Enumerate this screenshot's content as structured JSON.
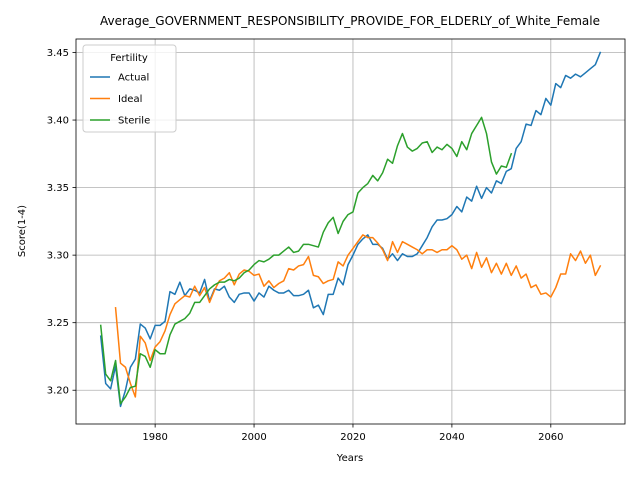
{
  "chart_data": {
    "type": "line",
    "title": "Average_GOVERNMENT_RESPONSIBILITY_PROVIDE_FOR_ELDERLY_of_White_Female",
    "xlabel": "Years",
    "ylabel": "Score(1-4)",
    "xlim": [
      1964,
      2075
    ],
    "ylim": [
      3.175,
      3.46
    ],
    "xticks": [
      1980,
      2000,
      2020,
      2040,
      2060
    ],
    "yticks": [
      3.2,
      3.25,
      3.3,
      3.35,
      3.4,
      3.45
    ],
    "xtick_labels": [
      "1980",
      "2000",
      "2020",
      "2040",
      "2060"
    ],
    "ytick_labels": [
      "3.20",
      "3.25",
      "3.30",
      "3.35",
      "3.40",
      "3.45"
    ],
    "grid": true,
    "legend": {
      "title": "Fertility",
      "position": "top-left"
    },
    "series": [
      {
        "name": "Actual",
        "color": "#1f77b4",
        "x": [
          1969,
          1970,
          1971,
          1972,
          1973,
          1974,
          1975,
          1976,
          1977,
          1978,
          1979,
          1980,
          1981,
          1982,
          1983,
          1984,
          1985,
          1986,
          1987,
          1988,
          1989,
          1990,
          1991,
          1992,
          1993,
          1994,
          1995,
          1996,
          1997,
          1998,
          1999,
          2000,
          2001,
          2002,
          2003,
          2004,
          2005,
          2006,
          2007,
          2008,
          2009,
          2010,
          2011,
          2012,
          2013,
          2014,
          2015,
          2016,
          2017,
          2018,
          2019,
          2020,
          2021,
          2022,
          2023,
          2024,
          2025,
          2026,
          2027,
          2028,
          2029,
          2030,
          2031,
          2032,
          2033,
          2034,
          2035,
          2036,
          2037,
          2038,
          2039,
          2040,
          2041,
          2042,
          2043,
          2044,
          2045,
          2046,
          2047,
          2048,
          2049,
          2050,
          2051,
          2052,
          2053,
          2054,
          2055,
          2056,
          2057,
          2058,
          2059,
          2060,
          2061,
          2062,
          2063,
          2064,
          2065,
          2066,
          2067,
          2068,
          2069,
          2070
        ],
        "values": [
          3.24,
          3.205,
          3.201,
          3.218,
          3.188,
          3.2,
          3.217,
          3.223,
          3.249,
          3.246,
          3.238,
          3.248,
          3.248,
          3.251,
          3.273,
          3.271,
          3.28,
          3.27,
          3.275,
          3.274,
          3.272,
          3.282,
          3.266,
          3.275,
          3.274,
          3.277,
          3.269,
          3.265,
          3.271,
          3.272,
          3.272,
          3.266,
          3.272,
          3.269,
          3.277,
          3.274,
          3.272,
          3.272,
          3.274,
          3.27,
          3.27,
          3.271,
          3.274,
          3.261,
          3.263,
          3.256,
          3.271,
          3.271,
          3.283,
          3.278,
          3.293,
          3.3,
          3.308,
          3.312,
          3.315,
          3.308,
          3.308,
          3.305,
          3.297,
          3.301,
          3.296,
          3.301,
          3.299,
          3.299,
          3.301,
          3.307,
          3.313,
          3.321,
          3.326,
          3.326,
          3.327,
          3.33,
          3.336,
          3.332,
          3.343,
          3.34,
          3.351,
          3.342,
          3.35,
          3.346,
          3.355,
          3.353,
          3.362,
          3.364,
          3.379,
          3.384,
          3.397,
          3.396,
          3.407,
          3.404,
          3.416,
          3.411,
          3.427,
          3.424,
          3.433,
          3.431,
          3.434,
          3.432,
          3.435,
          3.438,
          3.441,
          3.45
        ]
      },
      {
        "name": "Ideal",
        "color": "#ff7f0e",
        "x": [
          1972,
          1973,
          1974,
          1975,
          1976,
          1977,
          1978,
          1979,
          1980,
          1981,
          1982,
          1983,
          1984,
          1985,
          1986,
          1987,
          1988,
          1989,
          1990,
          1991,
          1992,
          1993,
          1994,
          1995,
          1996,
          1997,
          1998,
          1999,
          2000,
          2001,
          2002,
          2003,
          2004,
          2005,
          2006,
          2007,
          2008,
          2009,
          2010,
          2011,
          2012,
          2013,
          2014,
          2015,
          2016,
          2017,
          2018,
          2019,
          2020,
          2021,
          2022,
          2023,
          2024,
          2025,
          2026,
          2027,
          2028,
          2029,
          2030,
          2031,
          2032,
          2033,
          2034,
          2035,
          2036,
          2037,
          2038,
          2039,
          2040,
          2041,
          2042,
          2043,
          2044,
          2045,
          2046,
          2047,
          2048,
          2049,
          2050,
          2051,
          2052,
          2053,
          2054,
          2055,
          2056,
          2057,
          2058,
          2059,
          2060,
          2061,
          2062,
          2063,
          2064,
          2065,
          2066,
          2067,
          2068,
          2069,
          2070
        ],
        "values": [
          3.261,
          3.22,
          3.217,
          3.205,
          3.195,
          3.24,
          3.235,
          3.222,
          3.232,
          3.236,
          3.244,
          3.256,
          3.264,
          3.267,
          3.27,
          3.269,
          3.277,
          3.27,
          3.276,
          3.265,
          3.274,
          3.281,
          3.283,
          3.287,
          3.278,
          3.286,
          3.289,
          3.288,
          3.285,
          3.286,
          3.277,
          3.281,
          3.276,
          3.279,
          3.281,
          3.29,
          3.289,
          3.292,
          3.293,
          3.299,
          3.285,
          3.284,
          3.279,
          3.281,
          3.282,
          3.295,
          3.292,
          3.3,
          3.305,
          3.31,
          3.315,
          3.313,
          3.313,
          3.309,
          3.304,
          3.296,
          3.31,
          3.302,
          3.31,
          3.308,
          3.306,
          3.304,
          3.301,
          3.304,
          3.304,
          3.302,
          3.304,
          3.304,
          3.307,
          3.304,
          3.297,
          3.3,
          3.29,
          3.302,
          3.291,
          3.298,
          3.287,
          3.294,
          3.286,
          3.294,
          3.285,
          3.292,
          3.283,
          3.286,
          3.276,
          3.278,
          3.271,
          3.272,
          3.269,
          3.276,
          3.286,
          3.286,
          3.301,
          3.296,
          3.303,
          3.294,
          3.3,
          3.285,
          3.292
        ]
      },
      {
        "name": "Sterile",
        "color": "#2ca02c",
        "x": [
          1969,
          1970,
          1971,
          1972,
          1973,
          1974,
          1975,
          1976,
          1977,
          1978,
          1979,
          1980,
          1981,
          1982,
          1983,
          1984,
          1985,
          1986,
          1987,
          1988,
          1989,
          1990,
          1991,
          1992,
          1993,
          1994,
          1995,
          1996,
          1997,
          1998,
          1999,
          2000,
          2001,
          2002,
          2003,
          2004,
          2005,
          2006,
          2007,
          2008,
          2009,
          2010,
          2011,
          2012,
          2013,
          2014,
          2015,
          2016,
          2017,
          2018,
          2019,
          2020,
          2021,
          2022,
          2023,
          2024,
          2025,
          2026,
          2027,
          2028,
          2029,
          2030,
          2031,
          2032,
          2033,
          2034,
          2035,
          2036,
          2037,
          2038,
          2039,
          2040,
          2041,
          2042,
          2043,
          2044,
          2045,
          2046,
          2047,
          2048,
          2049,
          2050,
          2051,
          2052
        ],
        "values": [
          3.248,
          3.212,
          3.207,
          3.222,
          3.19,
          3.195,
          3.202,
          3.203,
          3.227,
          3.225,
          3.217,
          3.23,
          3.227,
          3.227,
          3.241,
          3.249,
          3.251,
          3.253,
          3.257,
          3.265,
          3.265,
          3.27,
          3.275,
          3.278,
          3.28,
          3.28,
          3.282,
          3.281,
          3.283,
          3.287,
          3.289,
          3.293,
          3.296,
          3.295,
          3.297,
          3.3,
          3.3,
          3.303,
          3.306,
          3.302,
          3.303,
          3.308,
          3.308,
          3.307,
          3.306,
          3.317,
          3.324,
          3.328,
          3.316,
          3.325,
          3.33,
          3.332,
          3.346,
          3.35,
          3.353,
          3.359,
          3.355,
          3.361,
          3.371,
          3.368,
          3.381,
          3.39,
          3.38,
          3.377,
          3.379,
          3.383,
          3.384,
          3.376,
          3.38,
          3.378,
          3.382,
          3.379,
          3.373,
          3.384,
          3.378,
          3.39,
          3.396,
          3.402,
          3.39,
          3.369,
          3.36,
          3.366,
          3.365,
          3.375
        ]
      }
    ]
  }
}
